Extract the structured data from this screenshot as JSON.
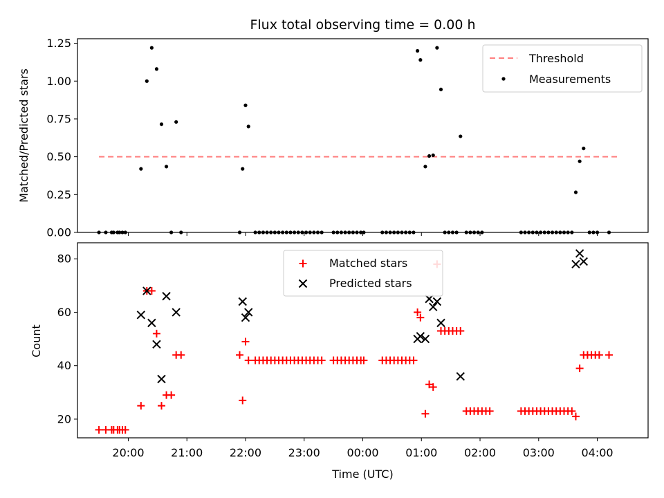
{
  "chart_data": [
    {
      "type": "scatter",
      "title": "Flux total observing time = 0.00 h",
      "ylabel": "Matched/Predicted stars",
      "xlabel": "",
      "ylim": [
        0,
        1.28
      ],
      "xlim": [
        "19:08",
        "04:52"
      ],
      "y_ticks": [
        "0.00",
        "0.25",
        "0.50",
        "0.75",
        "1.00",
        "1.25"
      ],
      "grid": false,
      "legend": {
        "placement": "top-right",
        "entries": [
          {
            "label": "Threshold",
            "marker": "dashed-line",
            "color": "#ff7f7f"
          },
          {
            "label": "Measurements",
            "marker": "dot",
            "color": "#000000"
          }
        ]
      },
      "threshold": {
        "name": "Threshold",
        "value": 0.5,
        "x_start": "19:30",
        "x_end": "04:22"
      },
      "series": [
        {
          "name": "Measurements",
          "color": "#000000",
          "points": [
            [
              "19:30",
              0
            ],
            [
              "19:37",
              0
            ],
            [
              "19:43",
              0
            ],
            [
              "19:45",
              0
            ],
            [
              "19:49",
              0
            ],
            [
              "19:51",
              0
            ],
            [
              "19:54",
              0
            ],
            [
              "19:57",
              0
            ],
            [
              "20:13",
              0.42
            ],
            [
              "20:19",
              1.0
            ],
            [
              "20:24",
              1.22
            ],
            [
              "20:29",
              1.08
            ],
            [
              "20:34",
              0.715
            ],
            [
              "20:39",
              0.435
            ],
            [
              "20:44",
              0
            ],
            [
              "20:49",
              0.73
            ],
            [
              "20:54",
              0
            ],
            [
              "21:54",
              0
            ],
            [
              "21:57",
              0.42
            ],
            [
              "22:00",
              0.84
            ],
            [
              "22:03",
              0.7
            ],
            [
              "22:10",
              0
            ],
            [
              "22:14",
              0
            ],
            [
              "22:18",
              0
            ],
            [
              "22:22",
              0
            ],
            [
              "22:26",
              0
            ],
            [
              "22:30",
              0
            ],
            [
              "22:34",
              0
            ],
            [
              "22:38",
              0
            ],
            [
              "22:42",
              0
            ],
            [
              "22:46",
              0
            ],
            [
              "22:50",
              0
            ],
            [
              "22:54",
              0
            ],
            [
              "22:58",
              0
            ],
            [
              "23:02",
              0
            ],
            [
              "23:06",
              0
            ],
            [
              "23:10",
              0
            ],
            [
              "23:14",
              0
            ],
            [
              "23:18",
              0
            ],
            [
              "23:30",
              0
            ],
            [
              "23:34",
              0
            ],
            [
              "23:38",
              0
            ],
            [
              "23:42",
              0
            ],
            [
              "23:46",
              0
            ],
            [
              "23:50",
              0
            ],
            [
              "23:54",
              0
            ],
            [
              "23:58",
              0
            ],
            [
              "00:01",
              0
            ],
            [
              "00:20",
              0
            ],
            [
              "00:24",
              0
            ],
            [
              "00:28",
              0
            ],
            [
              "00:32",
              0
            ],
            [
              "00:36",
              0
            ],
            [
              "00:40",
              0
            ],
            [
              "00:44",
              0
            ],
            [
              "00:48",
              0
            ],
            [
              "00:52",
              0
            ],
            [
              "00:56",
              1.2
            ],
            [
              "00:59",
              1.14
            ],
            [
              "01:04",
              0.435
            ],
            [
              "01:08",
              0.505
            ],
            [
              "01:12",
              0.51
            ],
            [
              "01:16",
              1.22
            ],
            [
              "01:20",
              0.945
            ],
            [
              "01:24",
              0
            ],
            [
              "01:28",
              0
            ],
            [
              "01:32",
              0
            ],
            [
              "01:36",
              0
            ],
            [
              "01:40",
              0.635
            ],
            [
              "01:46",
              0
            ],
            [
              "01:50",
              0
            ],
            [
              "01:54",
              0
            ],
            [
              "01:58",
              0
            ],
            [
              "02:02",
              0
            ],
            [
              "02:42",
              0
            ],
            [
              "02:46",
              0
            ],
            [
              "02:50",
              0
            ],
            [
              "02:54",
              0
            ],
            [
              "02:58",
              0
            ],
            [
              "03:02",
              0
            ],
            [
              "03:06",
              0
            ],
            [
              "03:10",
              0
            ],
            [
              "03:14",
              0
            ],
            [
              "03:18",
              0
            ],
            [
              "03:22",
              0
            ],
            [
              "03:26",
              0
            ],
            [
              "03:30",
              0
            ],
            [
              "03:34",
              0
            ],
            [
              "03:38",
              0.265
            ],
            [
              "03:42",
              0.47
            ],
            [
              "03:46",
              0.555
            ],
            [
              "03:52",
              0
            ],
            [
              "03:56",
              0
            ],
            [
              "04:00",
              0
            ],
            [
              "04:12",
              0
            ]
          ]
        }
      ]
    },
    {
      "type": "scatter",
      "title": "",
      "ylabel": "Count",
      "xlabel": "Time (UTC)",
      "ylim": [
        13,
        86
      ],
      "xlim": [
        "19:08",
        "04:52"
      ],
      "x_ticks": [
        "20:00",
        "21:00",
        "22:00",
        "23:00",
        "00:00",
        "01:00",
        "02:00",
        "03:00",
        "04:00"
      ],
      "y_ticks": [
        "20",
        "40",
        "60",
        "80"
      ],
      "grid": false,
      "legend": {
        "placement": "top-center",
        "entries": [
          {
            "label": "Matched stars",
            "marker": "plus",
            "color": "#ff0000"
          },
          {
            "label": "Predicted stars",
            "marker": "x",
            "color": "#000000"
          }
        ]
      },
      "series": [
        {
          "name": "Matched stars",
          "color": "#ff0000",
          "marker": "plus",
          "points": [
            [
              "19:30",
              16
            ],
            [
              "19:37",
              16
            ],
            [
              "19:43",
              16
            ],
            [
              "19:45",
              16
            ],
            [
              "19:49",
              16
            ],
            [
              "19:51",
              16
            ],
            [
              "19:54",
              16
            ],
            [
              "19:57",
              16
            ],
            [
              "20:13",
              25
            ],
            [
              "20:19",
              68
            ],
            [
              "20:24",
              68
            ],
            [
              "20:29",
              52
            ],
            [
              "20:34",
              25
            ],
            [
              "20:39",
              29
            ],
            [
              "20:44",
              29
            ],
            [
              "20:49",
              44
            ],
            [
              "20:54",
              44
            ],
            [
              "21:54",
              44
            ],
            [
              "21:57",
              27
            ],
            [
              "22:00",
              49
            ],
            [
              "22:03",
              42
            ],
            [
              "22:10",
              42
            ],
            [
              "22:14",
              42
            ],
            [
              "22:18",
              42
            ],
            [
              "22:22",
              42
            ],
            [
              "22:26",
              42
            ],
            [
              "22:30",
              42
            ],
            [
              "22:34",
              42
            ],
            [
              "22:38",
              42
            ],
            [
              "22:42",
              42
            ],
            [
              "22:46",
              42
            ],
            [
              "22:50",
              42
            ],
            [
              "22:54",
              42
            ],
            [
              "22:58",
              42
            ],
            [
              "23:02",
              42
            ],
            [
              "23:06",
              42
            ],
            [
              "23:10",
              42
            ],
            [
              "23:14",
              42
            ],
            [
              "23:18",
              42
            ],
            [
              "23:30",
              42
            ],
            [
              "23:34",
              42
            ],
            [
              "23:38",
              42
            ],
            [
              "23:42",
              42
            ],
            [
              "23:46",
              42
            ],
            [
              "23:50",
              42
            ],
            [
              "23:54",
              42
            ],
            [
              "23:58",
              42
            ],
            [
              "00:01",
              42
            ],
            [
              "00:20",
              42
            ],
            [
              "00:24",
              42
            ],
            [
              "00:28",
              42
            ],
            [
              "00:32",
              42
            ],
            [
              "00:36",
              42
            ],
            [
              "00:40",
              42
            ],
            [
              "00:44",
              42
            ],
            [
              "00:48",
              42
            ],
            [
              "00:52",
              42
            ],
            [
              "00:56",
              60
            ],
            [
              "00:59",
              58
            ],
            [
              "01:04",
              22
            ],
            [
              "01:08",
              33
            ],
            [
              "01:12",
              32
            ],
            [
              "01:16",
              78
            ],
            [
              "01:20",
              53
            ],
            [
              "01:24",
              53
            ],
            [
              "01:28",
              53
            ],
            [
              "01:32",
              53
            ],
            [
              "01:36",
              53
            ],
            [
              "01:40",
              53
            ],
            [
              "01:46",
              23
            ],
            [
              "01:50",
              23
            ],
            [
              "01:54",
              23
            ],
            [
              "01:58",
              23
            ],
            [
              "02:02",
              23
            ],
            [
              "02:06",
              23
            ],
            [
              "02:10",
              23
            ],
            [
              "02:42",
              23
            ],
            [
              "02:46",
              23
            ],
            [
              "02:50",
              23
            ],
            [
              "02:54",
              23
            ],
            [
              "02:58",
              23
            ],
            [
              "03:02",
              23
            ],
            [
              "03:06",
              23
            ],
            [
              "03:10",
              23
            ],
            [
              "03:14",
              23
            ],
            [
              "03:18",
              23
            ],
            [
              "03:22",
              23
            ],
            [
              "03:26",
              23
            ],
            [
              "03:30",
              23
            ],
            [
              "03:34",
              23
            ],
            [
              "03:38",
              21
            ],
            [
              "03:42",
              39
            ],
            [
              "03:46",
              44
            ],
            [
              "03:50",
              44
            ],
            [
              "03:54",
              44
            ],
            [
              "03:58",
              44
            ],
            [
              "04:02",
              44
            ],
            [
              "04:12",
              44
            ]
          ]
        },
        {
          "name": "Predicted stars",
          "color": "#000000",
          "marker": "x",
          "points": [
            [
              "20:13",
              59
            ],
            [
              "20:19",
              68
            ],
            [
              "20:24",
              56
            ],
            [
              "20:29",
              48
            ],
            [
              "20:34",
              35
            ],
            [
              "20:39",
              66
            ],
            [
              "20:49",
              60
            ],
            [
              "21:57",
              64
            ],
            [
              "22:00",
              58
            ],
            [
              "22:03",
              60
            ],
            [
              "00:56",
              50
            ],
            [
              "00:59",
              51
            ],
            [
              "01:04",
              50
            ],
            [
              "01:08",
              65
            ],
            [
              "01:12",
              62
            ],
            [
              "01:16",
              64
            ],
            [
              "01:20",
              56
            ],
            [
              "01:40",
              36
            ],
            [
              "03:38",
              78
            ],
            [
              "03:42",
              82
            ],
            [
              "03:46",
              79
            ]
          ]
        }
      ]
    }
  ]
}
